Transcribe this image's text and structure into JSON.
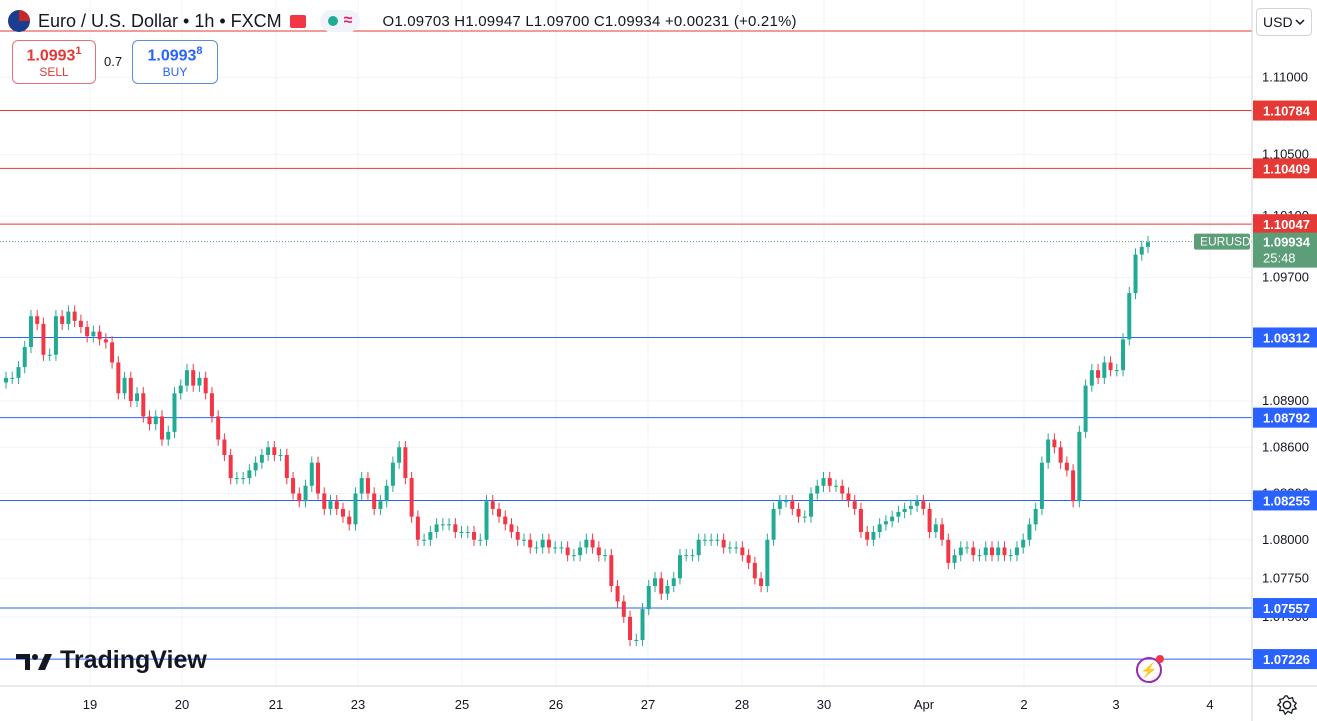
{
  "header": {
    "title": "Euro / U.S. Dollar • 1h • FXCM",
    "approx_symbol": "≈",
    "ohlc": "O1.09703  H1.09947  L1.09700  C1.09934  +0.00231  (+0.21%)"
  },
  "trade": {
    "sell_price_main": "1.0993",
    "sell_price_sup": "1",
    "sell_label": "SELL",
    "spread": "0.7",
    "buy_price_main": "1.0993",
    "buy_price_sup": "8",
    "buy_label": "BUY"
  },
  "currency_selector": "USD",
  "logo_text": "TradingView",
  "colors": {
    "up": "#22ab94",
    "down": "#f23645",
    "resistance": "#e53935",
    "support": "#2962ff",
    "price_tag": "#5b9e78"
  },
  "chart_data": {
    "type": "candlestick",
    "symbol": "EURUSD",
    "timeframe": "1h",
    "x_labels": [
      "19",
      "20",
      "21",
      "23",
      "25",
      "26",
      "27",
      "28",
      "30",
      "Apr",
      "2",
      "3",
      "4"
    ],
    "y_ticks": [
      "1.11000",
      "1.10500",
      "1.10100",
      "1.09700",
      "1.08900",
      "1.08600",
      "1.08300",
      "1.08000",
      "1.07750",
      "1.07500"
    ],
    "ylim": [
      1.07,
      1.113
    ],
    "resistance_levels": [
      "1.10784",
      "1.10409",
      "1.10047"
    ],
    "support_levels": [
      "1.09312",
      "1.08792",
      "1.08255",
      "1.07557",
      "1.07226"
    ],
    "top_line_level": 1.113,
    "last_price": {
      "symbol": "EURUSD",
      "value": "1.09934",
      "countdown": "25:48"
    },
    "series": [
      {
        "values": [
          1.0905,
          1.0905,
          1.0912,
          1.0925,
          1.0945,
          1.094,
          1.092,
          1.092,
          1.0945,
          1.094,
          1.0948,
          1.0942,
          1.0938,
          1.0932,
          1.0935,
          1.093,
          1.0928,
          1.0915,
          1.0895,
          1.0905,
          1.089,
          1.0895,
          1.088,
          1.0875,
          1.088,
          1.0865,
          1.087,
          1.0895,
          1.09,
          1.091,
          1.09,
          1.0905,
          1.0895,
          1.088,
          1.0865,
          1.0855,
          1.084,
          1.084,
          1.084,
          1.0845,
          1.085,
          1.0855,
          1.086,
          1.0855,
          1.0855,
          1.084,
          1.083,
          1.0825,
          1.0835,
          1.085,
          1.083,
          1.082,
          1.0825,
          1.082,
          1.0815,
          1.081,
          1.083,
          1.084,
          1.083,
          1.082,
          1.0825,
          1.0835,
          1.085,
          1.086,
          1.084,
          1.0815,
          1.08,
          1.08,
          1.0805,
          1.081,
          1.081,
          1.081,
          1.0805,
          1.0805,
          1.0805,
          1.08,
          1.08,
          1.0825,
          1.082,
          1.0815,
          1.081,
          1.0805,
          1.08,
          1.08,
          1.0795,
          1.0795,
          1.08,
          1.0795,
          1.0795,
          1.0795,
          1.079,
          1.079,
          1.0795,
          1.08,
          1.0795,
          1.079,
          1.079,
          1.077,
          1.076,
          1.075,
          1.0735,
          1.0735,
          1.0755,
          1.077,
          1.0775,
          1.0765,
          1.077,
          1.0775,
          1.079,
          1.079,
          1.079,
          1.08,
          1.08,
          1.08,
          1.08,
          1.0795,
          1.0795,
          1.0795,
          1.079,
          1.0785,
          1.0775,
          1.077,
          1.08,
          1.082,
          1.0825,
          1.0825,
          1.082,
          1.0815,
          1.0815,
          1.083,
          1.0835,
          1.084,
          1.0835,
          1.0835,
          1.083,
          1.0825,
          1.082,
          1.0805,
          1.08,
          1.0805,
          1.081,
          1.0812,
          1.0815,
          1.0818,
          1.082,
          1.0822,
          1.0825,
          1.082,
          1.0805,
          1.081,
          1.08,
          1.0785,
          1.079,
          1.0795,
          1.0795,
          1.079,
          1.079,
          1.0795,
          1.079,
          1.0795,
          1.079,
          1.079,
          1.0795,
          1.08,
          1.081,
          1.082,
          1.085,
          1.0865,
          1.086,
          1.085,
          1.0845,
          1.0825,
          1.087,
          1.09,
          1.091,
          1.0905,
          1.0915,
          1.091,
          1.091,
          1.093,
          1.096,
          1.0985,
          1.099,
          1.0993
        ],
        "note": "approximate hourly closes"
      }
    ]
  }
}
